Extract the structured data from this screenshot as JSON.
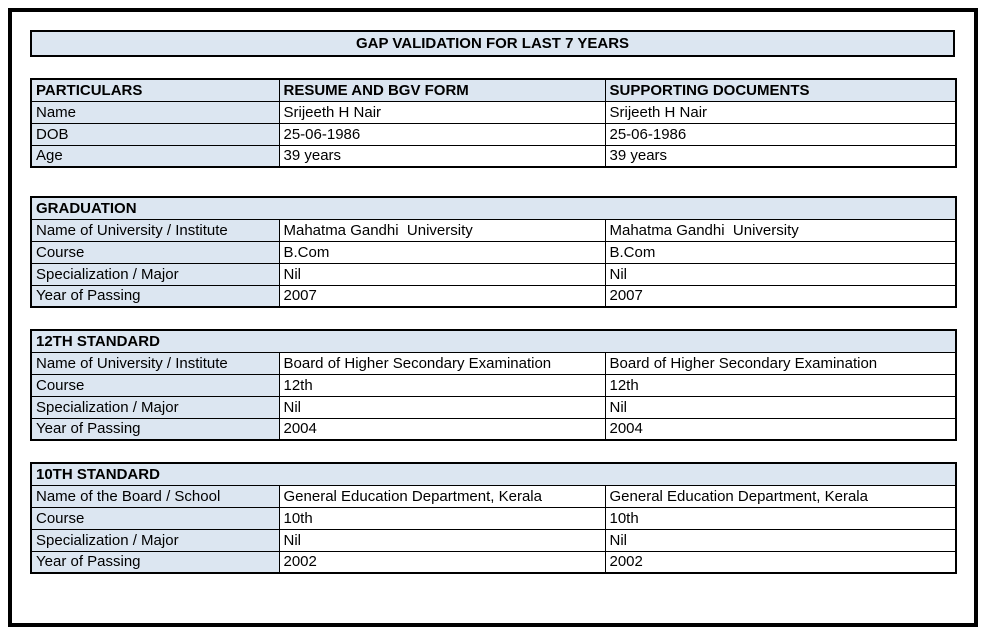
{
  "page_title": "GAP VALIDATION FOR LAST 7 YEARS",
  "colors": {
    "section_header_bg": "#dce6f1",
    "table_border": "#000000",
    "page_bg": "#ffffff",
    "text": "#000000"
  },
  "particulars_table": {
    "columns": [
      "PARTICULARS",
      "RESUME AND BGV FORM",
      "SUPPORTING DOCUMENTS"
    ],
    "rows": [
      {
        "label": "Name",
        "resume": "Srijeeth H Nair",
        "supporting": "Srijeeth H Nair"
      },
      {
        "label": "DOB",
        "resume": "25-06-1986",
        "supporting": "25-06-1986"
      },
      {
        "label": "Age",
        "resume": "39 years",
        "supporting": "39 years"
      }
    ]
  },
  "sections": [
    {
      "title": "GRADUATION",
      "rows": [
        {
          "label": "Name of University / Institute",
          "resume": "Mahatma Gandhi  University",
          "supporting": "Mahatma Gandhi  University"
        },
        {
          "label": "Course",
          "resume": "B.Com",
          "supporting": "B.Com"
        },
        {
          "label": "Specialization / Major",
          "resume": "Nil",
          "supporting": "Nil"
        },
        {
          "label": "Year of Passing",
          "resume": "2007",
          "supporting": "2007"
        }
      ]
    },
    {
      "title": "12TH STANDARD",
      "rows": [
        {
          "label": "Name of University / Institute",
          "resume": "Board of Higher Secondary Examination",
          "supporting": "Board of Higher Secondary Examination"
        },
        {
          "label": "Course",
          "resume": "12th",
          "supporting": "12th"
        },
        {
          "label": "Specialization / Major",
          "resume": "Nil",
          "supporting": "Nil"
        },
        {
          "label": "Year of Passing",
          "resume": "2004",
          "supporting": "2004"
        }
      ]
    },
    {
      "title": "10TH STANDARD",
      "rows": [
        {
          "label": "Name of the Board / School",
          "resume": "General Education Department, Kerala",
          "supporting": "General Education Department, Kerala"
        },
        {
          "label": "Course",
          "resume": "10th",
          "supporting": "10th"
        },
        {
          "label": "Specialization / Major",
          "resume": "Nil",
          "supporting": "Nil"
        },
        {
          "label": "Year of Passing",
          "resume": "2002",
          "supporting": "2002"
        }
      ]
    }
  ]
}
